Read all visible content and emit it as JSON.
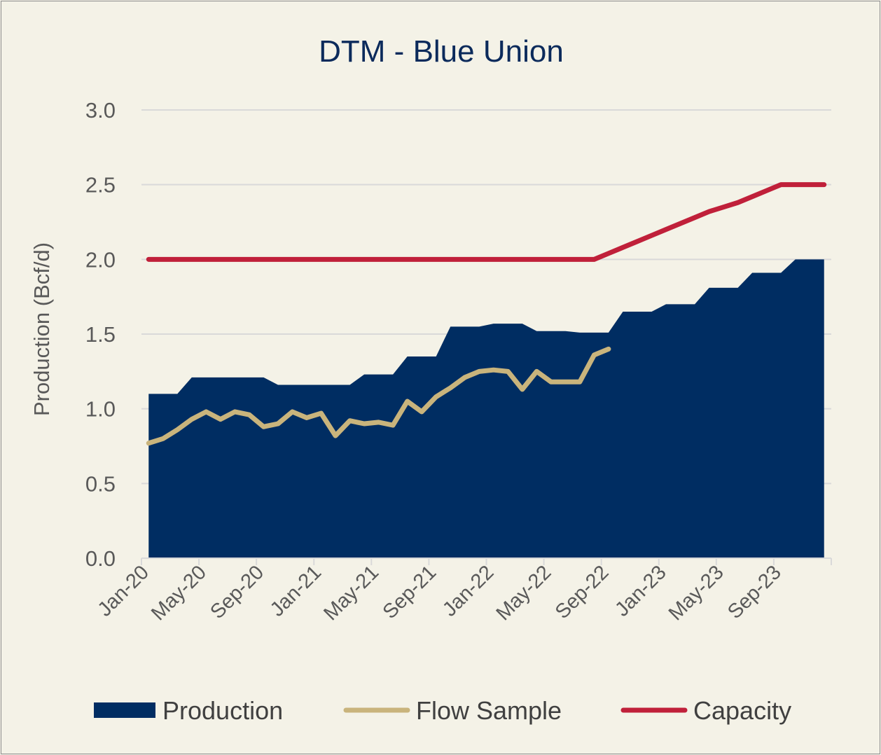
{
  "chart_data": {
    "type": "area",
    "title": "DTM - Blue Union",
    "ylabel": "Production (Bcf/d)",
    "xlabel": "",
    "ylim": [
      0,
      3.0
    ],
    "yticks": [
      "0.0",
      "0.5",
      "1.0",
      "1.5",
      "2.0",
      "2.5",
      "3.0"
    ],
    "xtick_labels": [
      "Jan-20",
      "May-20",
      "Sep-20",
      "Jan-21",
      "May-21",
      "Sep-21",
      "Jan-22",
      "May-22",
      "Sep-22",
      "Jan-23",
      "May-23",
      "Sep-23"
    ],
    "grid": true,
    "legend": "bottom",
    "x": [
      "Jan-20",
      "Feb-20",
      "Mar-20",
      "Apr-20",
      "May-20",
      "Jun-20",
      "Jul-20",
      "Aug-20",
      "Sep-20",
      "Oct-20",
      "Nov-20",
      "Dec-20",
      "Jan-21",
      "Feb-21",
      "Mar-21",
      "Apr-21",
      "May-21",
      "Jun-21",
      "Jul-21",
      "Aug-21",
      "Sep-21",
      "Oct-21",
      "Nov-21",
      "Dec-21",
      "Jan-22",
      "Feb-22",
      "Mar-22",
      "Apr-22",
      "May-22",
      "Jun-22",
      "Jul-22",
      "Aug-22",
      "Sep-22",
      "Oct-22",
      "Nov-22",
      "Dec-22",
      "Jan-23",
      "Feb-23",
      "Mar-23",
      "Apr-23",
      "May-23",
      "Jun-23",
      "Jul-23",
      "Aug-23",
      "Sep-23",
      "Oct-23",
      "Nov-23",
      "Dec-23"
    ],
    "series": [
      {
        "name": "Production",
        "kind": "area",
        "color": "#002d62",
        "values": [
          1.1,
          1.1,
          1.1,
          1.21,
          1.21,
          1.21,
          1.21,
          1.21,
          1.21,
          1.16,
          1.16,
          1.16,
          1.16,
          1.16,
          1.16,
          1.23,
          1.23,
          1.23,
          1.35,
          1.35,
          1.35,
          1.55,
          1.55,
          1.55,
          1.57,
          1.57,
          1.57,
          1.52,
          1.52,
          1.52,
          1.51,
          1.51,
          1.51,
          1.65,
          1.65,
          1.65,
          1.7,
          1.7,
          1.7,
          1.81,
          1.81,
          1.81,
          1.91,
          1.91,
          1.91,
          2.0,
          2.0,
          2.0
        ]
      },
      {
        "name": "Flow Sample",
        "kind": "line",
        "color": "#c9b47c",
        "values": [
          0.77,
          0.8,
          0.86,
          0.93,
          0.98,
          0.93,
          0.98,
          0.96,
          0.88,
          0.9,
          0.98,
          0.94,
          0.97,
          0.82,
          0.92,
          0.9,
          0.91,
          0.89,
          1.05,
          0.98,
          1.08,
          1.14,
          1.21,
          1.25,
          1.26,
          1.25,
          1.13,
          1.25,
          1.18,
          1.18,
          1.18,
          1.36,
          1.4,
          null,
          null,
          null,
          null,
          null,
          null,
          null,
          null,
          null,
          null,
          null,
          null,
          null,
          null,
          null
        ]
      },
      {
        "name": "Capacity",
        "kind": "line",
        "color": "#c0203a",
        "values": [
          2.0,
          2.0,
          2.0,
          2.0,
          2.0,
          2.0,
          2.0,
          2.0,
          2.0,
          2.0,
          2.0,
          2.0,
          2.0,
          2.0,
          2.0,
          2.0,
          2.0,
          2.0,
          2.0,
          2.0,
          2.0,
          2.0,
          2.0,
          2.0,
          2.0,
          2.0,
          2.0,
          2.0,
          2.0,
          2.0,
          2.0,
          2.0,
          2.04,
          2.08,
          2.12,
          2.16,
          2.2,
          2.24,
          2.28,
          2.32,
          2.35,
          2.38,
          2.42,
          2.46,
          2.5,
          2.5,
          2.5,
          2.5
        ]
      }
    ]
  }
}
